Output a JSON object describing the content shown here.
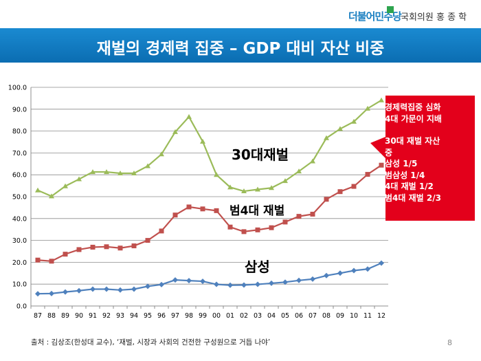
{
  "header": {
    "party": "더불어민주당",
    "member": "국회의원 홍 종 학"
  },
  "title": "재벌의 경제력 집중 – GDP 대비 자산 비중",
  "colors": {
    "title_bar": "#1279c0",
    "samsung": "#4f81bd",
    "big4": "#c0504d",
    "top30": "#9bbb59",
    "callout": "#e3001b"
  },
  "callout": {
    "lines": [
      "경제력집중 심화",
      "4대 가문이 지배",
      "",
      "30대 재벌 자산",
      "중",
      "삼성 1/5",
      "범삼성 1/4",
      "4대 재벌 1/2",
      "범4대 재벌 2/3"
    ]
  },
  "series_labels": {
    "top30": "30대재벌",
    "big4": "범4대 재벌",
    "samsung": "삼성"
  },
  "source": "출처 : 김상조(한성대 교수), ‘재벌, 시장과 사회의 건전한 구성원으로 거듭 나야’",
  "page_number": "8",
  "chart_data": {
    "type": "line",
    "x": [
      "87",
      "88",
      "89",
      "90",
      "91",
      "92",
      "93",
      "94",
      "95",
      "96",
      "97",
      "98",
      "99",
      "00",
      "01",
      "02",
      "03",
      "04",
      "05",
      "06",
      "07",
      "08",
      "09",
      "10",
      "11",
      "12"
    ],
    "ylim": [
      0,
      100
    ],
    "yticks": [
      "0.0",
      "10.0",
      "20.0",
      "30.0",
      "40.0",
      "50.0",
      "60.0",
      "70.0",
      "80.0",
      "90.0",
      "100.0"
    ],
    "grid": true,
    "series": [
      {
        "key": "top30",
        "values": [
          52.9,
          50.2,
          54.8,
          58.0,
          61.3,
          61.3,
          60.7,
          60.7,
          64.0,
          69.4,
          79.6,
          86.5,
          75.2,
          60.0,
          54.3,
          52.5,
          53.3,
          54.0,
          57.2,
          61.6,
          66.2,
          76.8,
          81.0,
          84.3,
          90.3,
          94.1
        ]
      },
      {
        "key": "big4",
        "values": [
          21.0,
          20.5,
          23.7,
          25.8,
          26.9,
          27.1,
          26.5,
          27.5,
          30.0,
          34.3,
          41.6,
          45.3,
          44.4,
          43.6,
          36.1,
          34.0,
          34.8,
          35.8,
          38.4,
          41.0,
          42.0,
          48.8,
          52.3,
          54.7,
          60.2,
          64.4
        ]
      },
      {
        "key": "samsung",
        "values": [
          5.6,
          5.7,
          6.4,
          7.0,
          7.7,
          7.7,
          7.3,
          7.7,
          9.0,
          9.8,
          11.9,
          11.6,
          11.3,
          9.9,
          9.5,
          9.6,
          9.9,
          10.4,
          10.9,
          11.7,
          12.3,
          13.9,
          15.0,
          16.2,
          16.9,
          19.6
        ]
      }
    ]
  }
}
